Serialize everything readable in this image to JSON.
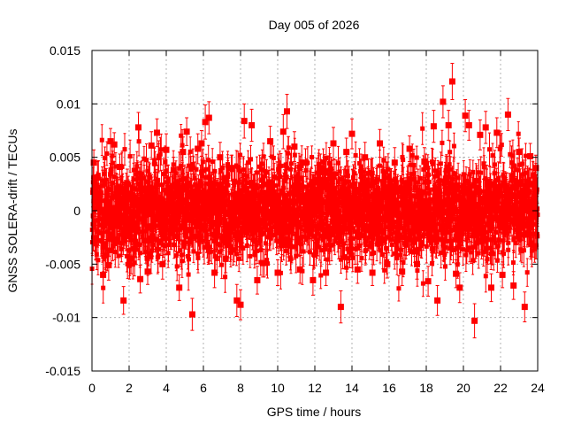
{
  "chart_data": {
    "type": "scatter",
    "title": "Day 005 of 2026",
    "xlabel": "GPS time / hours",
    "ylabel": "GNSS SOLERA-drift / TECUs",
    "xlim": [
      0,
      24
    ],
    "ylim": [
      -0.015,
      0.015
    ],
    "x_ticks": [
      0,
      2,
      4,
      6,
      8,
      10,
      12,
      14,
      16,
      18,
      20,
      22,
      24
    ],
    "x_tick_labels": [
      "0",
      "2",
      "4",
      "6",
      "8",
      "10",
      "12",
      "14",
      "16",
      "18",
      "20",
      "22",
      "24"
    ],
    "y_ticks": [
      -0.015,
      -0.01,
      -0.005,
      0,
      0.005,
      0.01,
      0.015
    ],
    "y_tick_labels": [
      "-0.015",
      "-0.01",
      "-0.005",
      "0",
      "0.005",
      "0.01",
      "0.015"
    ],
    "grid": true,
    "marker_color": "#ff0000",
    "series": [
      {
        "error_bars": true,
        "points": [
          [
            0.1,
            0.0045,
            0.0012
          ],
          [
            0.3,
            0.0031,
            0.0015
          ],
          [
            0.6,
            -0.006,
            0.0013
          ],
          [
            0.9,
            -0.0051,
            0.0014
          ],
          [
            1.0,
            0.0065,
            0.0012
          ],
          [
            1.2,
            0.0062,
            0.0011
          ],
          [
            1.5,
            0.0041,
            0.0012
          ],
          [
            1.7,
            -0.0084,
            0.0013
          ],
          [
            1.9,
            0.0025,
            0.0014
          ],
          [
            2.1,
            -0.0045,
            0.0014
          ],
          [
            2.5,
            0.0078,
            0.0014
          ],
          [
            2.6,
            -0.0064,
            0.0013
          ],
          [
            3.0,
            -0.0057,
            0.0012
          ],
          [
            3.2,
            0.0061,
            0.0013
          ],
          [
            3.5,
            0.0073,
            0.0013
          ],
          [
            3.8,
            -0.005,
            0.0014
          ],
          [
            4.0,
            0.0057,
            0.0015
          ],
          [
            4.4,
            0.0038,
            0.0012
          ],
          [
            4.7,
            -0.0072,
            0.0012
          ],
          [
            4.9,
            0.0055,
            0.0014
          ],
          [
            5.1,
            0.0074,
            0.0013
          ],
          [
            5.4,
            -0.0097,
            0.0015
          ],
          [
            5.7,
            0.0058,
            0.0014
          ],
          [
            5.9,
            0.0063,
            0.0012
          ],
          [
            6.1,
            0.0083,
            0.0016
          ],
          [
            6.3,
            0.0087,
            0.0015
          ],
          [
            6.6,
            -0.0058,
            0.0014
          ],
          [
            6.9,
            0.005,
            0.0014
          ],
          [
            7.2,
            -0.0045,
            0.0013
          ],
          [
            7.5,
            0.004,
            0.0012
          ],
          [
            7.8,
            -0.0084,
            0.0015
          ],
          [
            8.0,
            -0.0088,
            0.0014
          ],
          [
            8.2,
            0.0084,
            0.0016
          ],
          [
            8.6,
            0.008,
            0.0015
          ],
          [
            8.9,
            -0.0065,
            0.0013
          ],
          [
            9.2,
            -0.0049,
            0.0013
          ],
          [
            9.6,
            0.0065,
            0.0014
          ],
          [
            10.0,
            -0.0058,
            0.0012
          ],
          [
            10.3,
            0.0074,
            0.0016
          ],
          [
            10.5,
            0.0093,
            0.0016
          ],
          [
            10.9,
            0.006,
            0.0014
          ],
          [
            11.2,
            -0.0055,
            0.0013
          ],
          [
            11.5,
            0.0045,
            0.0013
          ],
          [
            11.9,
            -0.0065,
            0.0014
          ],
          [
            12.3,
            0.004,
            0.0013
          ],
          [
            12.6,
            -0.0058,
            0.0012
          ],
          [
            13.0,
            0.0063,
            0.0015
          ],
          [
            13.4,
            -0.009,
            0.0015
          ],
          [
            13.7,
            0.0055,
            0.0013
          ],
          [
            14.0,
            0.0072,
            0.0014
          ],
          [
            14.3,
            -0.0055,
            0.0013
          ],
          [
            14.7,
            0.005,
            0.0014
          ],
          [
            15.1,
            -0.0058,
            0.0012
          ],
          [
            15.5,
            0.0063,
            0.0013
          ],
          [
            15.9,
            -0.005,
            0.0013
          ],
          [
            16.3,
            0.0045,
            0.0014
          ],
          [
            16.7,
            -0.0057,
            0.0013
          ],
          [
            17.1,
            0.0058,
            0.0012
          ],
          [
            17.5,
            -0.005,
            0.0014
          ],
          [
            17.9,
            0.0046,
            0.0013
          ],
          [
            18.1,
            -0.0066,
            0.0014
          ],
          [
            18.4,
            0.0079,
            0.0015
          ],
          [
            18.6,
            -0.0084,
            0.0014
          ],
          [
            18.9,
            0.0102,
            0.0015
          ],
          [
            19.2,
            0.008,
            0.0014
          ],
          [
            19.4,
            0.0121,
            0.0017
          ],
          [
            19.6,
            -0.0059,
            0.0013
          ],
          [
            19.8,
            -0.0072,
            0.0014
          ],
          [
            20.1,
            0.0089,
            0.0015
          ],
          [
            20.3,
            0.008,
            0.0014
          ],
          [
            20.6,
            -0.0103,
            0.0016
          ],
          [
            20.9,
            0.0071,
            0.0014
          ],
          [
            21.2,
            0.0078,
            0.0015
          ],
          [
            21.5,
            -0.0072,
            0.0013
          ],
          [
            21.8,
            0.0073,
            0.0014
          ],
          [
            22.1,
            -0.006,
            0.0012
          ],
          [
            22.4,
            0.009,
            0.0015
          ],
          [
            22.7,
            -0.007,
            0.0013
          ],
          [
            23.0,
            0.0055,
            0.0013
          ],
          [
            23.3,
            -0.009,
            0.0014
          ],
          [
            23.6,
            0.0051,
            0.0012
          ],
          [
            23.9,
            0.004,
            0.0012
          ]
        ]
      }
    ],
    "dense_band": {
      "sigma": 0.0022,
      "error_mean": 0.0013,
      "samples_per_hour": 120
    }
  }
}
